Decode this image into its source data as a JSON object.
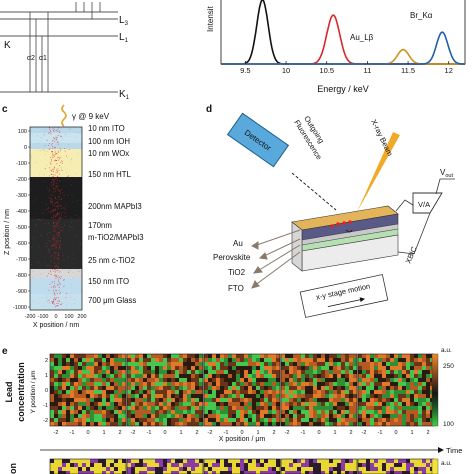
{
  "panel_letters": {
    "c": "c",
    "d": "d",
    "e": "e"
  },
  "panel_a": {
    "level_L3": "L",
    "level_L3_sub": "3",
    "level_L1": "L",
    "level_L1_sub": "1",
    "level_K": "K",
    "level_K1": "K",
    "level_K1_sub": "1",
    "alpha_labels": [
      "α2",
      "α1"
    ]
  },
  "panel_b": {
    "ylabel": "Intensit",
    "xlabel": "Energy / keV",
    "peak_labels": [
      "Br_Kα",
      "Au_Lβ"
    ],
    "colors": {
      "black": "#111111",
      "red": "#d42a2a",
      "gold": "#c9951e",
      "blue": "#1f5fa8"
    },
    "chart_data": {
      "type": "line",
      "xlim": [
        9.2,
        12.2
      ],
      "ticks": [
        "9.5",
        "10",
        "10.5",
        "11",
        "11.5",
        "12"
      ],
      "tick_values": [
        9.5,
        10,
        10.5,
        11,
        11.5,
        12
      ],
      "series": [
        {
          "name": "",
          "color": "#111111",
          "center": 9.71,
          "width": 0.07,
          "height": 1.25
        },
        {
          "name": "",
          "color": "#d42a2a",
          "center": 10.58,
          "width": 0.08,
          "height": 0.95
        },
        {
          "name": "Au_Lβ",
          "color": "#c9951e",
          "center": 11.44,
          "width": 0.07,
          "height": 0.28
        },
        {
          "name": "Br_Kα",
          "color": "#1f5fa8",
          "center": 11.92,
          "width": 0.07,
          "height": 0.62
        }
      ]
    }
  },
  "panel_c": {
    "beam_label": "γ @ 9 keV",
    "ylabel": "Z position / nm",
    "xlabel": "X position / nm",
    "yticks": [
      "100",
      "0",
      "-100",
      "-200",
      "-300",
      "-400",
      "-500",
      "-600",
      "-700",
      "-800",
      "-900",
      "-1000"
    ],
    "xticks": [
      "-200",
      "-100",
      "0",
      "100",
      "200"
    ],
    "layers": [
      {
        "label": "10 nm ITO",
        "color": "#b9d9ea"
      },
      {
        "label": "100 nm IOH",
        "color": "#c9e3ef"
      },
      {
        "label": "10 nm WOx",
        "color": "#b9d9ea"
      },
      {
        "label": "150 nm HTL",
        "color": "#f6edb2"
      },
      {
        "label": "200nm MAPbI3",
        "color": "#1d1d1d"
      },
      {
        "label": "170nm",
        "color": "#2a2a2a"
      },
      {
        "label": "m-TiO2/MAPbI3",
        "color": "#2a2a2a"
      },
      {
        "label": "25 nm c-TiO2",
        "color": "#d7d7d7"
      },
      {
        "label": "150 nm ITO",
        "color": "#bfdcec"
      },
      {
        "label": "700 μm Glass",
        "color": "#c7e0ee"
      }
    ]
  },
  "panel_d": {
    "detector": "Detector",
    "outgoing": "Outgoing",
    "fluorescence": "Fluorescence",
    "xray_beam": "X-ray Beam",
    "vout": "V",
    "vout_sub": "out",
    "va": "V/A",
    "xbic": "XBIC",
    "layers": [
      "Au",
      "Perovskite",
      "TiO2",
      "FTO"
    ],
    "stage": "x-y stage motion"
  },
  "panel_e": {
    "row_label_1": "Lead",
    "row_label_2": "concentration",
    "ylabel": "Y position / μm",
    "xlabel": "X position / μm",
    "xticks": [
      "-2",
      "-1",
      "0",
      "1",
      "2"
    ],
    "yticks": [
      "2",
      "1",
      "0",
      "-1",
      "-2"
    ],
    "colorbar_unit": "a.u.",
    "colorbar_top": "250",
    "colorbar_bottom": "100",
    "time_label": "Time",
    "next_row_label": "on",
    "next_colorbar_unit": "a.u."
  }
}
